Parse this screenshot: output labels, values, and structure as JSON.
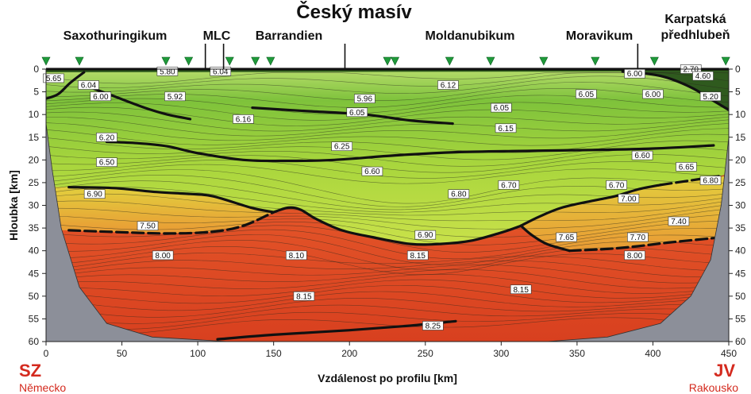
{
  "page": {
    "title": "Český masív",
    "provinces": [
      {
        "name": "Saxothuringikum",
        "x": 38
      },
      {
        "name": "MLC",
        "x": 110
      },
      {
        "name": "Barrandien",
        "x": 160
      },
      {
        "name": "Moldanubikum",
        "x": 265
      },
      {
        "name": "Moravikum",
        "x": 365
      },
      {
        "name": "Karpatská\npředhlubeň",
        "x": 425
      }
    ],
    "left_direction": "SZ",
    "left_country": "Německo",
    "right_direction": "JV",
    "right_country": "Rakousko",
    "colors": {
      "sediments": "#2f5a1e",
      "upper_crust_light": "#b6dc6b",
      "upper_crust_green": "#7ec23b",
      "mid_crust": "#c9e14a",
      "lower_crust": "#e8b437",
      "mantle": "#e4572a",
      "mantle_deep": "#d8401f",
      "outside": "#8c8f99",
      "station": "#1f9a3a"
    }
  },
  "chart_data": {
    "type": "velocity cross-section (contour)",
    "xlabel": "Vzdálenost po profilu [km]",
    "ylabel": "Hloubka [km]",
    "xlim": [
      0,
      450
    ],
    "ylim": [
      60,
      0
    ],
    "x_ticks": [
      0,
      50,
      100,
      150,
      200,
      250,
      300,
      350,
      400,
      450
    ],
    "y_ticks": [
      0,
      5,
      10,
      15,
      20,
      25,
      30,
      35,
      40,
      45,
      50,
      55,
      60
    ],
    "stations_km": [
      0,
      22,
      79,
      94,
      121,
      138,
      148,
      225,
      230,
      266,
      293,
      328,
      362,
      401,
      448
    ],
    "boundary_ticks_km": [
      105,
      117,
      197,
      390
    ],
    "velocity_labels": [
      {
        "text": "5.80",
        "x": 80,
        "y": 0.5
      },
      {
        "text": "6.04",
        "x": 115,
        "y": 0.5
      },
      {
        "text": "5.65",
        "x": 5,
        "y": 2
      },
      {
        "text": "6.04",
        "x": 28,
        "y": 3.5
      },
      {
        "text": "6.00",
        "x": 36,
        "y": 6
      },
      {
        "text": "5.92",
        "x": 85,
        "y": 6
      },
      {
        "text": "6.12",
        "x": 265,
        "y": 3.5
      },
      {
        "text": "5.96",
        "x": 210,
        "y": 6.5
      },
      {
        "text": "6.05",
        "x": 205,
        "y": 9.5
      },
      {
        "text": "6.05",
        "x": 300,
        "y": 8.5
      },
      {
        "text": "6.05",
        "x": 356,
        "y": 5.5
      },
      {
        "text": "6.00",
        "x": 388,
        "y": 1
      },
      {
        "text": "6.00",
        "x": 400,
        "y": 5.5
      },
      {
        "text": "2.70",
        "x": 425,
        "y": 0
      },
      {
        "text": "4.60",
        "x": 433,
        "y": 1.5
      },
      {
        "text": "5.20",
        "x": 438,
        "y": 6
      },
      {
        "text": "6.16",
        "x": 130,
        "y": 11
      },
      {
        "text": "6.15",
        "x": 303,
        "y": 13
      },
      {
        "text": "6.20",
        "x": 40,
        "y": 15
      },
      {
        "text": "6.25",
        "x": 195,
        "y": 17
      },
      {
        "text": "6.50",
        "x": 40,
        "y": 20.5
      },
      {
        "text": "6.60",
        "x": 215,
        "y": 22.5
      },
      {
        "text": "6.60",
        "x": 393,
        "y": 19
      },
      {
        "text": "6.65",
        "x": 422,
        "y": 21.5
      },
      {
        "text": "6.70",
        "x": 305,
        "y": 25.5
      },
      {
        "text": "6.70",
        "x": 376,
        "y": 25.5
      },
      {
        "text": "6.80",
        "x": 438,
        "y": 24.5
      },
      {
        "text": "6.90",
        "x": 32,
        "y": 27.5
      },
      {
        "text": "6.80",
        "x": 272,
        "y": 27.5
      },
      {
        "text": "7.00",
        "x": 384,
        "y": 28.5
      },
      {
        "text": "7.50",
        "x": 67,
        "y": 34.5
      },
      {
        "text": "7.40",
        "x": 417,
        "y": 33.5
      },
      {
        "text": "6.90",
        "x": 250,
        "y": 36.5
      },
      {
        "text": "7.65",
        "x": 343,
        "y": 37
      },
      {
        "text": "7.70",
        "x": 390,
        "y": 37
      },
      {
        "text": "8.00",
        "x": 77,
        "y": 41
      },
      {
        "text": "8.10",
        "x": 165,
        "y": 41
      },
      {
        "text": "8.15",
        "x": 245,
        "y": 41
      },
      {
        "text": "8.00",
        "x": 388,
        "y": 41
      },
      {
        "text": "8.15",
        "x": 313,
        "y": 48.5
      },
      {
        "text": "8.15",
        "x": 170,
        "y": 50
      },
      {
        "text": "8.25",
        "x": 255,
        "y": 56.5
      }
    ],
    "major_interfaces": [
      {
        "name": "base of sediments (left)",
        "style": "solid",
        "points": [
          [
            0,
            6.5
          ],
          [
            8,
            5.5
          ],
          [
            16,
            3
          ],
          [
            25,
            0.7
          ]
        ]
      },
      {
        "name": "base of foredeep",
        "style": "solid",
        "points": [
          [
            380,
            0.5
          ],
          [
            405,
            1.5
          ],
          [
            425,
            4
          ],
          [
            440,
            7
          ],
          [
            450,
            9
          ]
        ]
      },
      {
        "name": "upper-crust reflector (left)",
        "style": "solid",
        "points": [
          [
            25,
            3.5
          ],
          [
            45,
            6
          ],
          [
            65,
            8.5
          ],
          [
            80,
            10
          ],
          [
            95,
            11
          ]
        ]
      },
      {
        "name": "upper-crust reflector (centre)",
        "style": "solid",
        "points": [
          [
            136,
            8.5
          ],
          [
            170,
            9.2
          ],
          [
            210,
            10
          ],
          [
            240,
            11.3
          ],
          [
            268,
            12
          ]
        ]
      },
      {
        "name": "mid-crust boundary",
        "style": "solid",
        "points": [
          [
            40,
            16
          ],
          [
            60,
            16.3
          ],
          [
            80,
            17
          ],
          [
            100,
            18.5
          ],
          [
            130,
            20
          ],
          [
            160,
            20.2
          ],
          [
            190,
            20
          ],
          [
            230,
            19
          ],
          [
            270,
            18.3
          ],
          [
            320,
            18
          ],
          [
            360,
            17.8
          ],
          [
            400,
            17.5
          ],
          [
            440,
            16.8
          ]
        ]
      },
      {
        "name": "lower-crust top (left)",
        "style": "solid",
        "points": [
          [
            15,
            26
          ],
          [
            45,
            26.2
          ],
          [
            70,
            27
          ],
          [
            95,
            27.5
          ],
          [
            110,
            28
          ],
          [
            135,
            30.5
          ],
          [
            150,
            31.5
          ]
        ]
      },
      {
        "name": "lower-crust top (right)",
        "style": "solid",
        "points": [
          [
            313,
            34.5
          ],
          [
            325,
            32.5
          ],
          [
            340,
            30.5
          ],
          [
            360,
            29
          ],
          [
            375,
            28
          ],
          [
            390,
            26.5
          ],
          [
            405,
            25.5
          ]
        ]
      },
      {
        "name": "lower-crust top (right, dashed)",
        "style": "dashed",
        "points": [
          [
            405,
            25.5
          ],
          [
            425,
            24.5
          ],
          [
            445,
            23.5
          ]
        ]
      },
      {
        "name": "Moho (main)",
        "style": "solid",
        "points": [
          [
            150,
            31.5
          ],
          [
            160,
            30.5
          ],
          [
            168,
            31
          ],
          [
            178,
            33
          ],
          [
            195,
            35.5
          ],
          [
            215,
            37
          ],
          [
            240,
            38.5
          ],
          [
            260,
            38.5
          ],
          [
            280,
            37.8
          ],
          [
            300,
            36
          ],
          [
            313,
            34.5
          ]
        ]
      },
      {
        "name": "Moho (left, dashed)",
        "style": "dashed",
        "points": [
          [
            15,
            35.5
          ],
          [
            40,
            35.8
          ],
          [
            80,
            36.2
          ],
          [
            110,
            35.8
          ],
          [
            130,
            34.5
          ],
          [
            150,
            31.5
          ]
        ]
      },
      {
        "name": "lower crust base (right)",
        "style": "solid",
        "points": [
          [
            313,
            34.5
          ],
          [
            320,
            36.5
          ],
          [
            330,
            38.5
          ],
          [
            345,
            40
          ]
        ]
      },
      {
        "name": "lower crust base (right, dashed)",
        "style": "dashed",
        "points": [
          [
            345,
            40
          ],
          [
            370,
            39.6
          ],
          [
            390,
            39
          ],
          [
            410,
            38.2
          ],
          [
            440,
            37.2
          ]
        ]
      },
      {
        "name": "mantle reflector",
        "style": "solid",
        "points": [
          [
            113,
            59.5
          ],
          [
            150,
            58.5
          ],
          [
            200,
            57.5
          ],
          [
            240,
            56.5
          ],
          [
            270,
            55.5
          ]
        ]
      }
    ]
  }
}
